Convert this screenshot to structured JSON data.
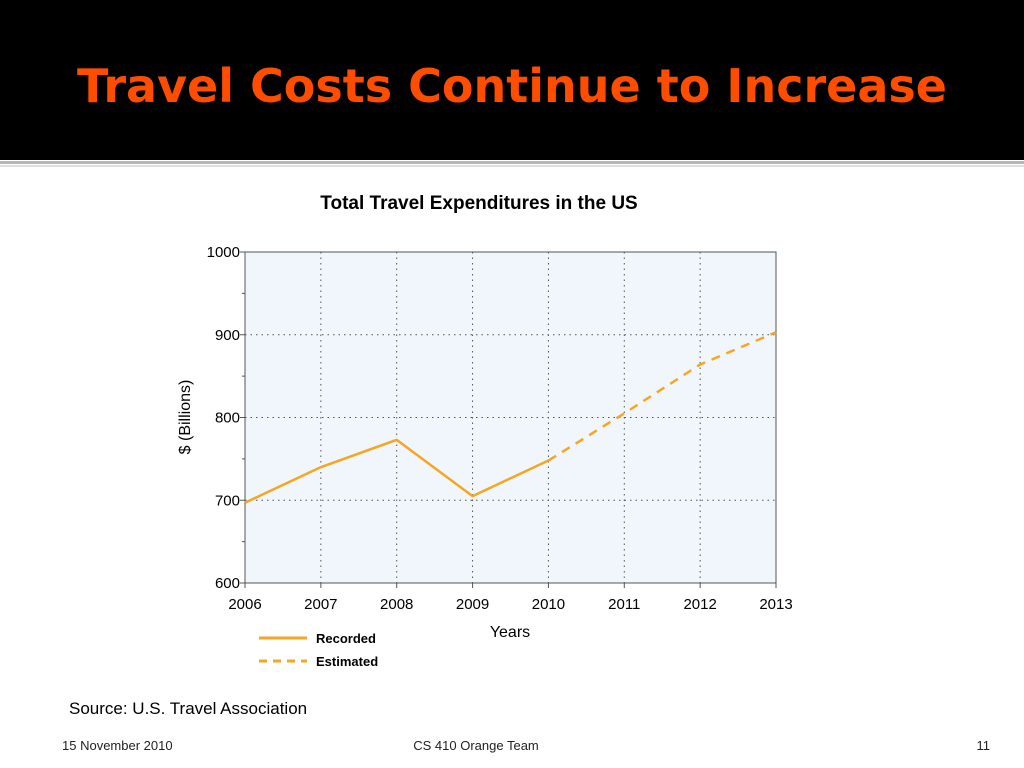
{
  "slide": {
    "title": "Travel Costs Continue to Increase",
    "source": "Source: U.S. Travel Association",
    "footer": {
      "date": "15 November 2010",
      "team": "CS 410 Orange Team",
      "page": "11"
    }
  },
  "colors": {
    "title": "#ff4d00",
    "line": "#f5a623",
    "plot_bg": "#f0f6fb"
  },
  "chart_data": {
    "type": "line",
    "title": "Total Travel Expenditures in the US",
    "xlabel": "Years",
    "ylabel": "$ (Billions)",
    "categories": [
      "2006",
      "2007",
      "2008",
      "2009",
      "2010",
      "2011",
      "2012",
      "2013"
    ],
    "yticks": [
      "600",
      "700",
      "800",
      "900",
      "1000"
    ],
    "ylim": [
      600,
      1000
    ],
    "grid": true,
    "legend_position": "bottom-left",
    "series": [
      {
        "name": "Recorded",
        "style": "solid",
        "points": [
          {
            "x": "2006",
            "y": 697
          },
          {
            "x": "2007",
            "y": 740
          },
          {
            "x": "2008",
            "y": 773
          },
          {
            "x": "2009",
            "y": 705
          },
          {
            "x": "2010",
            "y": 748
          }
        ]
      },
      {
        "name": "Estimated",
        "style": "dashed",
        "points": [
          {
            "x": "2010",
            "y": 748
          },
          {
            "x": "2011",
            "y": 805
          },
          {
            "x": "2012",
            "y": 864
          },
          {
            "x": "2013",
            "y": 903
          }
        ]
      }
    ]
  }
}
